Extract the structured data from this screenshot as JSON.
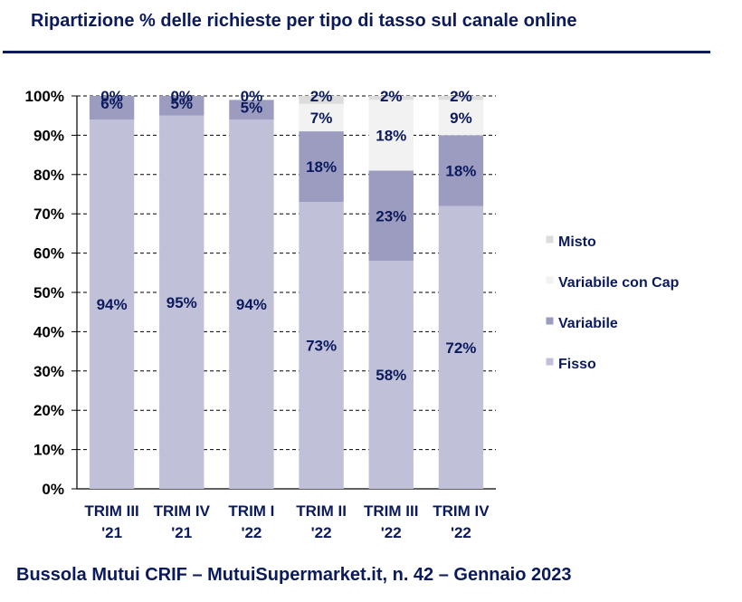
{
  "header": {
    "title": "Ripartizione % delle richieste per tipo di tasso sul canale online"
  },
  "footer": {
    "text": "Bussola Mutui CRIF – MutuiSupermarket.it, n. 42 – Gennaio 2023"
  },
  "chart_data": {
    "type": "bar",
    "stacked": true,
    "title": "Ripartizione % delle richieste per tipo di tasso sul canale online",
    "ylim": [
      0,
      100
    ],
    "yticks": [
      "0%",
      "10%",
      "20%",
      "30%",
      "40%",
      "50%",
      "60%",
      "70%",
      "80%",
      "90%",
      "100%"
    ],
    "grid": true,
    "legend_position": "right",
    "categories": [
      [
        "TRIM III",
        "'21"
      ],
      [
        "TRIM IV",
        "'21"
      ],
      [
        "TRIM I",
        "'22"
      ],
      [
        "TRIM II",
        "'22"
      ],
      [
        "TRIM III",
        "'22"
      ],
      [
        "TRIM IV",
        "'22"
      ]
    ],
    "series": [
      {
        "name": "Fisso",
        "color": "#c0c0d8",
        "values": [
          94,
          95,
          94,
          73,
          58,
          72
        ],
        "labels": [
          "94%",
          "95%",
          "94%",
          "73%",
          "58%",
          "72%"
        ]
      },
      {
        "name": "Variabile",
        "color": "#9c9cc0",
        "values": [
          6,
          5,
          5,
          18,
          23,
          18
        ],
        "labels": [
          "6%",
          "5%",
          "5%",
          "18%",
          "23%",
          "18%"
        ]
      },
      {
        "name": "Variabile con Cap",
        "color": "#f2f2f2",
        "values": [
          0,
          0,
          0,
          7,
          18,
          9
        ],
        "labels": [
          "",
          "",
          "",
          "7%",
          "18%",
          "9%"
        ]
      },
      {
        "name": "Misto",
        "color": "#dcdcdc",
        "values": [
          0,
          0,
          0,
          2,
          2,
          2
        ],
        "labels": [
          "0%",
          "0%",
          "0%",
          "2%",
          "2%",
          "2%"
        ]
      }
    ]
  }
}
